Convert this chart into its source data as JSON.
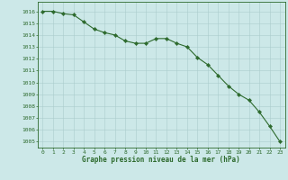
{
  "x": [
    0,
    1,
    2,
    3,
    4,
    5,
    6,
    7,
    8,
    9,
    10,
    11,
    12,
    13,
    14,
    15,
    16,
    17,
    18,
    19,
    20,
    21,
    22,
    23
  ],
  "y": [
    1016.0,
    1016.0,
    1015.8,
    1015.7,
    1015.1,
    1014.5,
    1014.2,
    1014.0,
    1013.5,
    1013.3,
    1013.3,
    1013.7,
    1013.7,
    1013.3,
    1013.0,
    1012.1,
    1011.5,
    1010.6,
    1009.7,
    1009.0,
    1008.5,
    1007.5,
    1006.3,
    1005.0
  ],
  "line_color": "#2d6a2d",
  "marker": "D",
  "marker_size": 2.2,
  "bg_color": "#cce8e8",
  "grid_color": "#aacccc",
  "xlabel": "Graphe pression niveau de la mer (hPa)",
  "xlabel_color": "#2d6a2d",
  "tick_color": "#2d6a2d",
  "ylim": [
    1004.5,
    1016.8
  ],
  "xlim": [
    -0.5,
    23.5
  ],
  "yticks": [
    1005,
    1006,
    1007,
    1008,
    1009,
    1010,
    1011,
    1012,
    1013,
    1014,
    1015,
    1016
  ],
  "xticks": [
    0,
    1,
    2,
    3,
    4,
    5,
    6,
    7,
    8,
    9,
    10,
    11,
    12,
    13,
    14,
    15,
    16,
    17,
    18,
    19,
    20,
    21,
    22,
    23
  ]
}
